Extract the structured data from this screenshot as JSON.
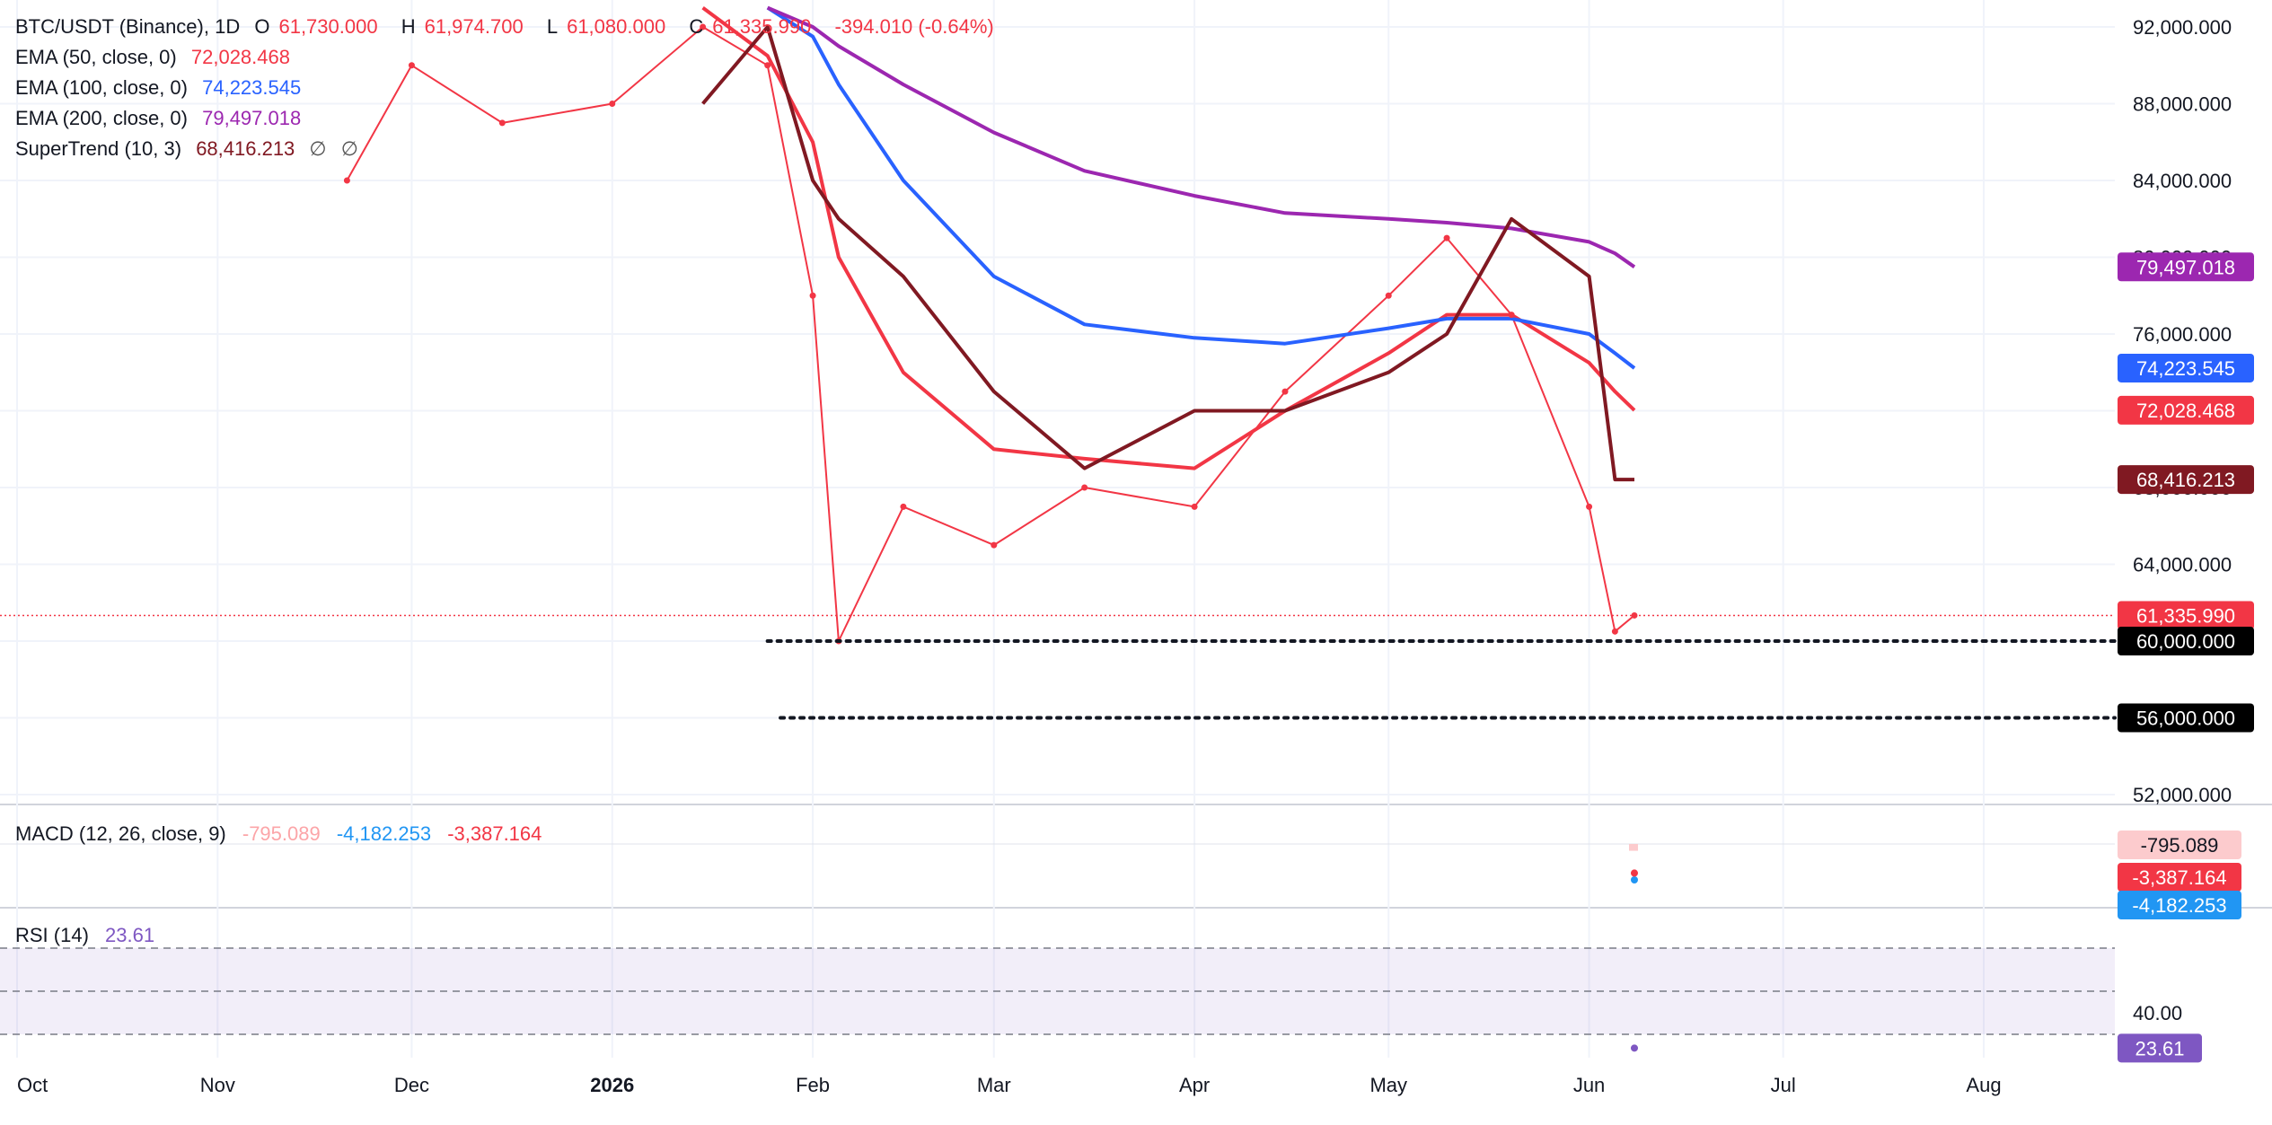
{
  "header": {
    "symbol": "BTC/USDT (Binance), 1D",
    "ohlc": {
      "open_label": "O",
      "open": "61,730.000",
      "high_label": "H",
      "high": "61,974.700",
      "low_label": "L",
      "low": "61,080.000",
      "close_label": "C",
      "close": "61,335.990",
      "change": "-394.010 (-0.64%)"
    }
  },
  "indicators": [
    {
      "label": "EMA (50, close, 0)",
      "value": "72,028.468",
      "color": "#F23645"
    },
    {
      "label": "EMA (100, close, 0)",
      "value": "74,223.545",
      "color": "#2962FF"
    },
    {
      "label": "EMA (200, close, 0)",
      "value": "79,497.018",
      "color": "#9C27B0"
    },
    {
      "label": "SuperTrend (10, 3)",
      "value": "68,416.213",
      "color": "#801922",
      "extra1": "∅",
      "extra2": "∅"
    }
  ],
  "price_axis": {
    "ticks": [
      "92,000.000",
      "88,000.000",
      "84,000.000",
      "80,000.000",
      "76,000.000",
      "72,000.000",
      "68,000.000",
      "64,000.000",
      "60,000.000",
      "56,000.000",
      "52,000.000"
    ],
    "tick_values": [
      92000,
      88000,
      84000,
      80000,
      76000,
      72000,
      68000,
      64000,
      60000,
      56000,
      52000
    ],
    "badges": [
      {
        "text": "79,497.018",
        "value": 79497.018,
        "bg": "#9C27B0",
        "fg": "#ffffff"
      },
      {
        "text": "74,223.545",
        "value": 74223.545,
        "bg": "#2962FF",
        "fg": "#ffffff"
      },
      {
        "text": "72,028.468",
        "value": 72028.468,
        "bg": "#F23645",
        "fg": "#ffffff"
      },
      {
        "text": "68,416.213",
        "value": 68416.213,
        "bg": "#801922",
        "fg": "#ffffff"
      },
      {
        "text": "61,335.990",
        "value": 61335.99,
        "bg": "#F23645",
        "fg": "#ffffff"
      },
      {
        "text": "60,000.000",
        "value": 60000,
        "bg": "#000000",
        "fg": "#ffffff"
      },
      {
        "text": "56,000.000",
        "value": 56000,
        "bg": "#000000",
        "fg": "#ffffff"
      }
    ]
  },
  "macd": {
    "label": "MACD (12, 26, close, 9)",
    "hist_value": "-795.089",
    "macd_value": "-4,182.253",
    "signal_value": "-3,387.164",
    "badges": [
      {
        "text": "-795.089",
        "bg": "#FCCBCD",
        "fg": "#131722"
      },
      {
        "text": "-3,387.164",
        "bg": "#F23645",
        "fg": "#ffffff"
      },
      {
        "text": "-4,182.253",
        "bg": "#2196F3",
        "fg": "#ffffff"
      }
    ]
  },
  "rsi": {
    "label": "RSI (14)",
    "value": "23.61",
    "axis_tick": "40.00",
    "badge": {
      "text": "23.61",
      "bg": "#7E57C2",
      "fg": "#ffffff"
    }
  },
  "time_axis": {
    "labels": [
      "Oct",
      "Nov",
      "Dec",
      "2026",
      "Feb",
      "Mar",
      "Apr",
      "May",
      "Jun",
      "Jul",
      "Aug"
    ]
  },
  "chart_data": {
    "type": "line",
    "title": "BTC/USDT (Binance), 1D",
    "xlabel": "",
    "ylabel": "",
    "ylim": [
      50000,
      94000
    ],
    "x": [
      "2025-10-01",
      "2025-10-15",
      "2025-11-01",
      "2025-11-15",
      "2025-11-21",
      "2025-12-01",
      "2025-12-15",
      "2026-01-01",
      "2026-01-15",
      "2026-01-25",
      "2026-02-01",
      "2026-02-05",
      "2026-02-15",
      "2026-03-01",
      "2026-03-15",
      "2026-04-01",
      "2026-04-15",
      "2026-05-01",
      "2026-05-10",
      "2026-05-20",
      "2026-06-01",
      "2026-06-05",
      "2026-06-08"
    ],
    "series": [
      {
        "name": "BTC/USDT",
        "color": "#F23645",
        "values": [
          null,
          null,
          null,
          null,
          84000,
          90000,
          87000,
          88000,
          92000,
          90000,
          78000,
          60000,
          67000,
          65000,
          68000,
          67000,
          73000,
          78000,
          81000,
          77000,
          67000,
          60500,
          61335.99
        ]
      },
      {
        "name": "EMA (50, close, 0)",
        "color": "#F23645",
        "values": [
          null,
          null,
          null,
          null,
          null,
          null,
          null,
          null,
          93000,
          90500,
          86000,
          80000,
          74000,
          70000,
          69500,
          69000,
          72000,
          75000,
          77000,
          77000,
          74500,
          73000,
          72028.468
        ]
      },
      {
        "name": "EMA (100, close, 0)",
        "color": "#2962FF",
        "values": [
          null,
          null,
          null,
          null,
          null,
          null,
          null,
          null,
          null,
          93000,
          91500,
          89000,
          84000,
          79000,
          76500,
          75800,
          75500,
          76300,
          76800,
          76800,
          76000,
          75000,
          74223.545
        ]
      },
      {
        "name": "EMA (200, close, 0)",
        "color": "#9C27B0",
        "values": [
          null,
          null,
          null,
          null,
          null,
          null,
          null,
          null,
          null,
          93000,
          92000,
          91000,
          89000,
          86500,
          84500,
          83200,
          82300,
          82000,
          81800,
          81500,
          80800,
          80200,
          79497.018
        ]
      },
      {
        "name": "SuperTrend (10, 3)",
        "color": "#801922",
        "values": [
          null,
          null,
          null,
          null,
          null,
          null,
          null,
          null,
          88000,
          92000,
          84000,
          82000,
          79000,
          73000,
          69000,
          72000,
          72000,
          74000,
          76000,
          82000,
          79000,
          68416.213,
          68416.213
        ]
      }
    ],
    "levels": [
      60000,
      56000
    ],
    "last_price": 61335.99,
    "macd": {
      "macd": -4182.253,
      "signal": -3387.164,
      "histogram": -795.089
    },
    "rsi": {
      "value": 23.61,
      "bands": [
        70,
        50,
        30
      ],
      "visible_tick": 40
    }
  }
}
